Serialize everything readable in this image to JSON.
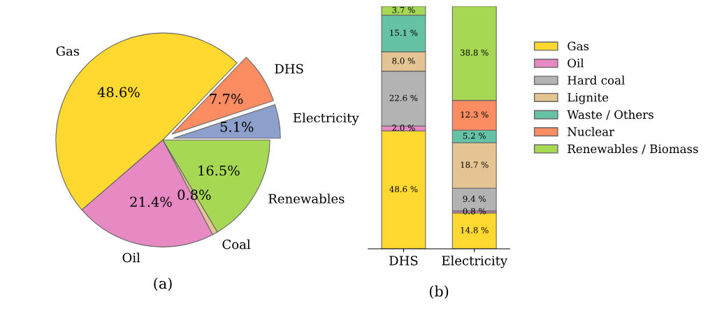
{
  "chart_data": [
    {
      "type": "pie",
      "xlabel": "(a)",
      "categories": [
        "Electricity",
        "DHS",
        "Gas",
        "Oil",
        "Coal",
        "Renewables"
      ],
      "values": [
        5.1,
        7.7,
        48.6,
        21.4,
        0.8,
        16.5
      ],
      "colors": [
        "#8da0cb",
        "#fc8d62",
        "#ffd92f",
        "#e78ac3",
        "#e5c494",
        "#a6d854"
      ],
      "value_labels": [
        "5.1%",
        "7.7%",
        "48.6%",
        "21.4%",
        "0.8%",
        "16.5%"
      ]
    },
    {
      "type": "bar",
      "stacked": true,
      "xlabel": "(b)",
      "categories": [
        "DHS",
        "Electricity"
      ],
      "ylim": [
        0,
        100
      ],
      "tick_labels": "x",
      "legend": "right",
      "series": [
        {
          "name": "Gas",
          "color": "#ffd92f",
          "values": [
            48.6,
            14.8
          ],
          "value_labels": [
            "48.6 %",
            "14.8 %"
          ]
        },
        {
          "name": "Oil",
          "color": "#e78ac3",
          "values": [
            2.0,
            0.8
          ],
          "value_labels": [
            "2.0 %",
            "0.8 %"
          ]
        },
        {
          "name": "Hard coal",
          "color": "#b3b3b3",
          "values": [
            22.6,
            9.4
          ],
          "value_labels": [
            "22.6 %",
            "9.4 %"
          ]
        },
        {
          "name": "Lignite",
          "color": "#e5c494",
          "values": [
            8.0,
            18.7
          ],
          "value_labels": [
            "8.0 %",
            "18.7 %"
          ]
        },
        {
          "name": "Waste / Others",
          "color": "#66c2a5",
          "values": [
            15.1,
            5.2
          ],
          "value_labels": [
            "15.1 %",
            "5.2 %"
          ]
        },
        {
          "name": "Nuclear",
          "color": "#fc8d62",
          "values": [
            null,
            12.3
          ],
          "value_labels": [
            null,
            "12.3 %"
          ]
        },
        {
          "name": "Renewables / Biomass",
          "color": "#a6d854",
          "values": [
            3.7,
            38.8
          ],
          "value_labels": [
            "3.7 %",
            "38.8 %"
          ]
        }
      ]
    }
  ]
}
